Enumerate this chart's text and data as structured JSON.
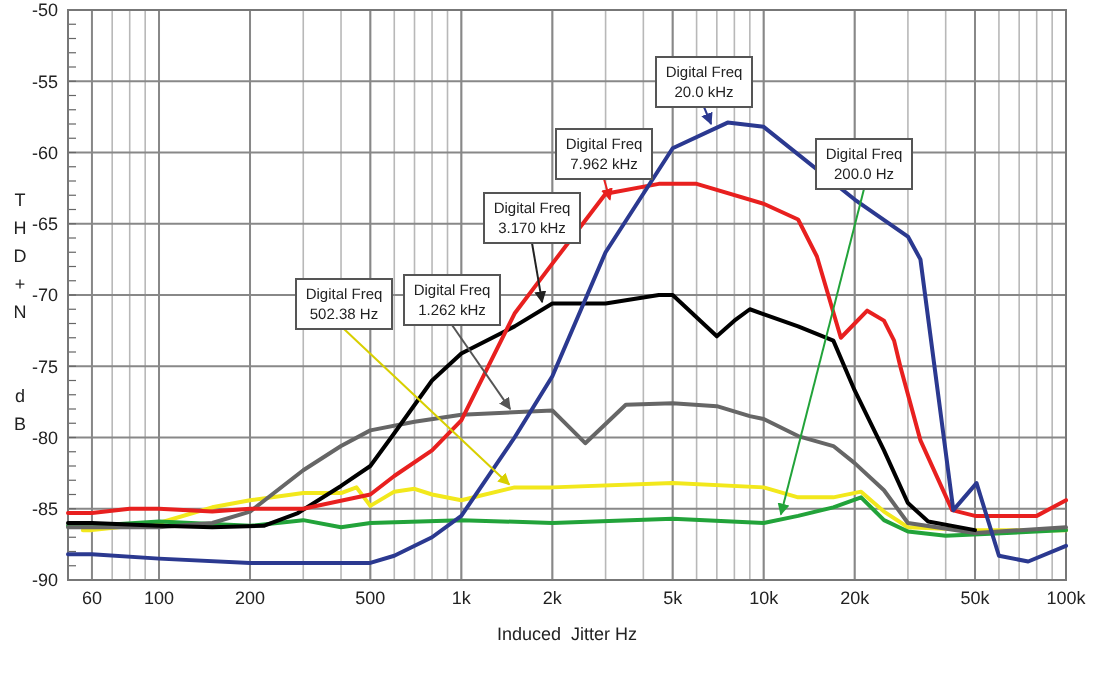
{
  "chart_data": {
    "type": "line",
    "xlabel": "Induced  Jitter Hz",
    "ylabel": "THD+N  dB",
    "log": "x",
    "grid": true,
    "line_style": "solid",
    "xlim": [
      50,
      100000
    ],
    "xticks": [
      60,
      100,
      200,
      500,
      {
        "value": 1000,
        "label": "1k"
      },
      {
        "value": 2000,
        "label": "2k"
      },
      {
        "value": 5000,
        "label": "5k"
      },
      {
        "value": 10000,
        "label": "10k"
      },
      {
        "value": 20000,
        "label": "20k"
      },
      {
        "value": 50000,
        "label": "50k"
      },
      {
        "value": 100000,
        "label": "100k"
      }
    ],
    "ylim": [
      -90,
      -50
    ],
    "yticks": [
      -90,
      -85,
      -80,
      -75,
      -70,
      -65,
      -60,
      -55,
      -50
    ],
    "series": [
      {
        "color": "#f2e81c",
        "x": [
          56,
          60,
          100,
          150,
          200,
          300,
          400,
          450,
          500,
          600,
          700,
          800,
          1000,
          1500,
          2000,
          5000,
          10000,
          13000,
          17000,
          21000,
          25000,
          30000,
          50000,
          100000
        ],
        "values": [
          -86.5,
          -86.5,
          -86,
          -84.9,
          -84.4,
          -83.9,
          -83.9,
          -83.5,
          -84.8,
          -83.8,
          -83.6,
          -84,
          -84.4,
          -83.5,
          -83.5,
          -83.2,
          -83.5,
          -84.2,
          -84.2,
          -83.8,
          -85.2,
          -86.3,
          -86.5,
          -86.5
        ]
      },
      {
        "color": "#22a33a",
        "x": [
          50,
          60,
          100,
          200,
          300,
          400,
          500,
          1000,
          2000,
          5000,
          10000,
          13000,
          17000,
          21000,
          25000,
          30000,
          40000,
          100000
        ],
        "values": [
          -86.2,
          -86.2,
          -85.9,
          -86.2,
          -85.8,
          -86.3,
          -86,
          -85.8,
          -86,
          -85.7,
          -86,
          -85.5,
          -84.9,
          -84.2,
          -85.8,
          -86.6,
          -86.9,
          -86.5
        ]
      },
      {
        "color": "#666666",
        "x": [
          50,
          60,
          100,
          150,
          200,
          300,
          400,
          500,
          700,
          1000,
          2000,
          2570,
          3500,
          5000,
          7000,
          9000,
          10000,
          13000,
          17000,
          20000,
          25000,
          30000,
          50000,
          100000
        ],
        "values": [
          -86.3,
          -86.3,
          -86.3,
          -86,
          -85.2,
          -82.3,
          -80.6,
          -79.5,
          -78.9,
          -78.4,
          -78.1,
          -80.4,
          -77.7,
          -77.6,
          -77.8,
          -78.5,
          -78.7,
          -79.9,
          -80.6,
          -81.8,
          -83.7,
          -86,
          -86.7,
          -86.3
        ]
      },
      {
        "color": "#000000",
        "x": [
          50,
          60,
          100,
          150,
          222,
          288,
          400,
          500,
          600,
          800,
          1000,
          1500,
          2000,
          3000,
          4500,
          5000,
          7000,
          8000,
          9000,
          13000,
          17000,
          20000,
          25000,
          30000,
          35000,
          50000
        ],
        "values": [
          -86,
          -86,
          -86.2,
          -86.3,
          -86.2,
          -85.3,
          -83.4,
          -82,
          -79.7,
          -76,
          -74.1,
          -72.2,
          -70.6,
          -70.6,
          -70,
          -70,
          -72.9,
          -71.8,
          -71,
          -72.2,
          -73.2,
          -76.7,
          -80.9,
          -84.6,
          -85.9,
          -86.5
        ]
      },
      {
        "color": "#e8201f",
        "x": [
          50,
          60,
          80,
          100,
          150,
          200,
          300,
          500,
          600,
          800,
          1000,
          1500,
          2000,
          3000,
          4500,
          6000,
          10000,
          13000,
          15000,
          18000,
          22000,
          25000,
          27000,
          28300,
          33000,
          42000,
          50000,
          80000,
          100000
        ],
        "values": [
          -85.3,
          -85.3,
          -85,
          -85,
          -85.2,
          -85,
          -85,
          -84,
          -82.7,
          -80.9,
          -78.8,
          -71.3,
          -67.8,
          -62.9,
          -62.2,
          -62.2,
          -63.6,
          -64.7,
          -67.3,
          -73,
          -71.1,
          -71.8,
          -73.2,
          -75,
          -80.2,
          -85.1,
          -85.5,
          -85.5,
          -84.4
        ]
      },
      {
        "color": "#2b3990",
        "x": [
          50,
          60,
          100,
          200,
          500,
          600,
          800,
          1000,
          1500,
          2000,
          3000,
          5000,
          7600,
          10000,
          20000,
          30000,
          33000,
          42400,
          50600,
          60000,
          75000,
          100000
        ],
        "values": [
          -88.2,
          -88.2,
          -88.5,
          -88.8,
          -88.8,
          -88.3,
          -87,
          -85.5,
          -80,
          -75.7,
          -67,
          -59.7,
          -57.9,
          -58.2,
          -63.3,
          -65.9,
          -67.5,
          -85.1,
          -83.2,
          -88.3,
          -88.7,
          -87.6
        ]
      }
    ],
    "annotations": [
      {
        "text": "Digital Freq\n502.38 Hz",
        "x": 1440,
        "y": -83.3
      },
      {
        "text": "Digital Freq\n1.262 kHz",
        "x": 1450,
        "y": -78
      },
      {
        "text": "Digital Freq\n3.170 kHz",
        "x": 1850,
        "y": -70.5
      },
      {
        "text": "Digital Freq\n7.962 kHz",
        "x": 3100,
        "y": -63.3
      },
      {
        "text": "Digital Freq\n20.0 kHz",
        "x": 6700,
        "y": -58
      },
      {
        "text": "Digital Freq\n200.0 Hz",
        "x": 11400,
        "y": -85.4
      }
    ]
  }
}
